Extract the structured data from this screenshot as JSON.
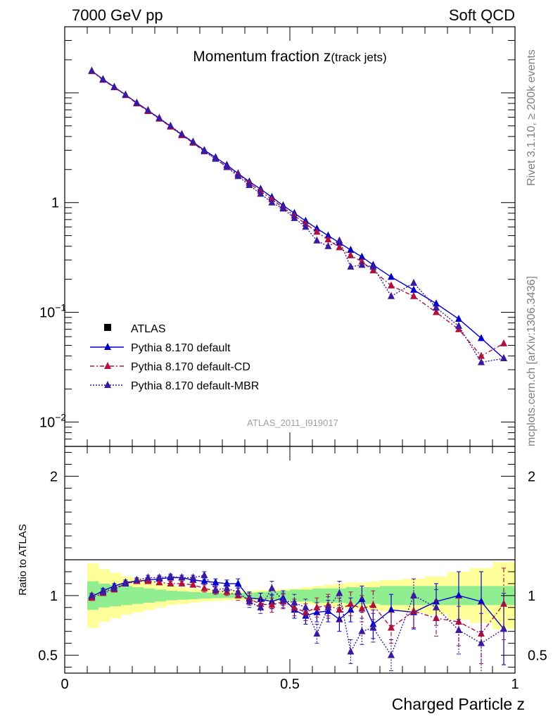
{
  "header": {
    "left": "7000 GeV pp",
    "right": "Soft QCD"
  },
  "side_labels": {
    "rivet_prefix": "Rivet 3.1.10, ",
    "rivet_symbol": "≥",
    "rivet_suffix": " 200k events",
    "mcplots": "mcplots.cern.ch [arXiv:1306.3436]"
  },
  "chart_data": {
    "type": "scatter",
    "title_main": "Momentum fraction z",
    "title_sub": "(track jets)",
    "analysis_label": "ATLAS_2011_I919017",
    "xlabel": "Charged Particle z",
    "xlim": [
      0,
      1
    ],
    "x_tick_labels": [
      "0",
      "0.5",
      "1"
    ],
    "main_panel": {
      "yscale": "log",
      "ylim": [
        0.006,
        40
      ],
      "y_tick_labels": [
        {
          "base": "10",
          "exp": "−2"
        },
        {
          "base": "10",
          "exp": "−1"
        },
        {
          "base": "1",
          "exp": ""
        }
      ]
    },
    "ratio_panel": {
      "ylabel": "Ratio to ATLAS",
      "ylim": [
        0.35,
        2.25
      ],
      "y_tick_labels": [
        "0.5",
        "1",
        "2"
      ],
      "band_inner_color": "#90ee90",
      "band_outer_color": "#ffff99"
    },
    "legend": {
      "placement": "bottom-left",
      "entries": [
        "ATLAS",
        "Pythia 8.170 default",
        "Pythia 8.170 default-CD",
        "Pythia 8.170 default-MBR"
      ]
    },
    "x": [
      0.06,
      0.085,
      0.11,
      0.135,
      0.16,
      0.185,
      0.21,
      0.235,
      0.26,
      0.285,
      0.31,
      0.335,
      0.36,
      0.385,
      0.41,
      0.435,
      0.46,
      0.485,
      0.51,
      0.535,
      0.56,
      0.585,
      0.61,
      0.635,
      0.66,
      0.685,
      0.725,
      0.775,
      0.825,
      0.875,
      0.925,
      0.975
    ],
    "bins": [
      [
        0.05,
        0.075
      ],
      [
        0.075,
        0.1
      ],
      [
        0.1,
        0.125
      ],
      [
        0.125,
        0.15
      ],
      [
        0.15,
        0.175
      ],
      [
        0.175,
        0.2
      ],
      [
        0.2,
        0.225
      ],
      [
        0.225,
        0.25
      ],
      [
        0.25,
        0.275
      ],
      [
        0.275,
        0.3
      ],
      [
        0.3,
        0.325
      ],
      [
        0.325,
        0.35
      ],
      [
        0.35,
        0.375
      ],
      [
        0.375,
        0.4
      ],
      [
        0.4,
        0.425
      ],
      [
        0.425,
        0.45
      ],
      [
        0.45,
        0.475
      ],
      [
        0.475,
        0.5
      ],
      [
        0.5,
        0.525
      ],
      [
        0.525,
        0.55
      ],
      [
        0.55,
        0.575
      ],
      [
        0.575,
        0.6
      ],
      [
        0.6,
        0.625
      ],
      [
        0.625,
        0.65
      ],
      [
        0.65,
        0.675
      ],
      [
        0.675,
        0.7
      ],
      [
        0.7,
        0.75
      ],
      [
        0.75,
        0.8
      ],
      [
        0.8,
        0.85
      ],
      [
        0.85,
        0.9
      ],
      [
        0.9,
        0.95
      ],
      [
        0.95,
        1.0
      ]
    ],
    "series": [
      {
        "name": "Pythia 8.170 default",
        "color": "#0000cc",
        "marker": "triangle",
        "line": "solid",
        "values": [
          15.8,
          13.3,
          11.3,
          9.6,
          8.1,
          6.9,
          5.85,
          4.95,
          4.15,
          3.55,
          3.0,
          2.58,
          2.2,
          1.84,
          1.55,
          1.33,
          1.12,
          0.94,
          0.8,
          0.68,
          0.58,
          0.5,
          0.43,
          0.37,
          0.32,
          0.27,
          0.21,
          0.16,
          0.12,
          0.087,
          0.058,
          0.038
        ],
        "ratio": [
          0.99,
          1.04,
          1.08,
          1.11,
          1.12,
          1.13,
          1.14,
          1.15,
          1.15,
          1.13,
          1.12,
          1.11,
          1.1,
          1.1,
          0.98,
          0.97,
          0.95,
          0.98,
          0.88,
          0.83,
          0.86,
          0.87,
          0.8,
          0.88,
          0.97,
          0.76,
          0.88,
          0.86,
          0.95,
          1.0,
          0.95,
          0.72
        ],
        "ratio_err": [
          0.02,
          0.02,
          0.02,
          0.02,
          0.02,
          0.02,
          0.02,
          0.02,
          0.02,
          0.02,
          0.03,
          0.03,
          0.03,
          0.04,
          0.05,
          0.05,
          0.06,
          0.06,
          0.07,
          0.07,
          0.08,
          0.09,
          0.1,
          0.1,
          0.11,
          0.12,
          0.13,
          0.14,
          0.15,
          0.2,
          0.25,
          0.3
        ]
      },
      {
        "name": "Pythia 8.170 default-CD",
        "color": "#b0103a",
        "marker": "triangle",
        "line": "dashdot",
        "values": [
          15.7,
          13.1,
          11.2,
          9.5,
          8.0,
          6.8,
          5.8,
          4.9,
          4.1,
          3.5,
          2.92,
          2.5,
          2.12,
          1.8,
          1.5,
          1.27,
          1.07,
          0.9,
          0.76,
          0.64,
          0.54,
          0.46,
          0.39,
          0.33,
          0.29,
          0.24,
          0.175,
          0.14,
          0.1,
          0.07,
          0.04,
          0.052
        ],
        "ratio": [
          0.98,
          1.02,
          1.05,
          1.1,
          1.12,
          1.12,
          1.11,
          1.1,
          1.1,
          1.09,
          1.06,
          1.04,
          1.03,
          1.0,
          0.97,
          0.93,
          0.92,
          0.95,
          0.9,
          0.86,
          0.9,
          0.92,
          0.88,
          0.93,
          0.89,
          0.92,
          0.73,
          0.87,
          0.81,
          0.78,
          0.68,
          0.93
        ],
        "ratio_err": [
          0.02,
          0.02,
          0.02,
          0.02,
          0.02,
          0.02,
          0.02,
          0.02,
          0.02,
          0.02,
          0.03,
          0.03,
          0.03,
          0.04,
          0.05,
          0.05,
          0.06,
          0.06,
          0.07,
          0.07,
          0.08,
          0.09,
          0.1,
          0.1,
          0.11,
          0.12,
          0.13,
          0.14,
          0.15,
          0.2,
          0.25,
          0.3
        ]
      },
      {
        "name": "Pythia 8.170 default-MBR",
        "color": "#3a1aa0",
        "marker": "triangle",
        "line": "dotted",
        "values": [
          15.9,
          13.2,
          11.3,
          9.6,
          8.1,
          6.95,
          5.9,
          5.0,
          4.2,
          3.58,
          2.95,
          2.5,
          2.1,
          1.74,
          1.44,
          1.2,
          1.0,
          0.88,
          0.72,
          0.6,
          0.45,
          0.4,
          0.45,
          0.26,
          0.27,
          0.26,
          0.14,
          0.185,
          0.11,
          0.075,
          0.035,
          0.038
        ],
        "ratio": [
          1.0,
          1.03,
          1.06,
          1.1,
          1.13,
          1.15,
          1.15,
          1.16,
          1.15,
          1.15,
          1.17,
          1.05,
          1.06,
          1.03,
          0.95,
          0.9,
          1.06,
          0.96,
          0.94,
          0.9,
          0.68,
          0.9,
          1.02,
          0.53,
          0.7,
          0.73,
          0.5,
          1.0,
          0.9,
          0.71,
          0.6,
          0.72
        ],
        "ratio_err": [
          0.02,
          0.02,
          0.02,
          0.02,
          0.02,
          0.02,
          0.02,
          0.02,
          0.02,
          0.02,
          0.03,
          0.03,
          0.03,
          0.04,
          0.05,
          0.05,
          0.06,
          0.06,
          0.07,
          0.07,
          0.08,
          0.09,
          0.1,
          0.1,
          0.11,
          0.12,
          0.13,
          0.14,
          0.15,
          0.2,
          0.25,
          0.3
        ]
      }
    ],
    "data_band_inner": [
      0.12,
      0.1,
      0.09,
      0.08,
      0.07,
      0.06,
      0.05,
      0.04,
      0.035,
      0.03,
      0.025,
      0.022,
      0.02,
      0.022,
      0.025,
      0.03,
      0.035,
      0.04,
      0.05,
      0.05,
      0.06,
      0.06,
      0.06,
      0.07,
      0.07,
      0.07,
      0.08,
      0.08,
      0.08,
      0.08,
      0.08,
      0.08
    ],
    "data_band_outer": [
      0.27,
      0.22,
      0.19,
      0.16,
      0.14,
      0.12,
      0.1,
      0.08,
      0.07,
      0.06,
      0.05,
      0.045,
      0.04,
      0.04,
      0.04,
      0.045,
      0.05,
      0.055,
      0.06,
      0.07,
      0.08,
      0.09,
      0.1,
      0.11,
      0.11,
      0.12,
      0.13,
      0.14,
      0.16,
      0.2,
      0.23,
      0.28
    ]
  }
}
